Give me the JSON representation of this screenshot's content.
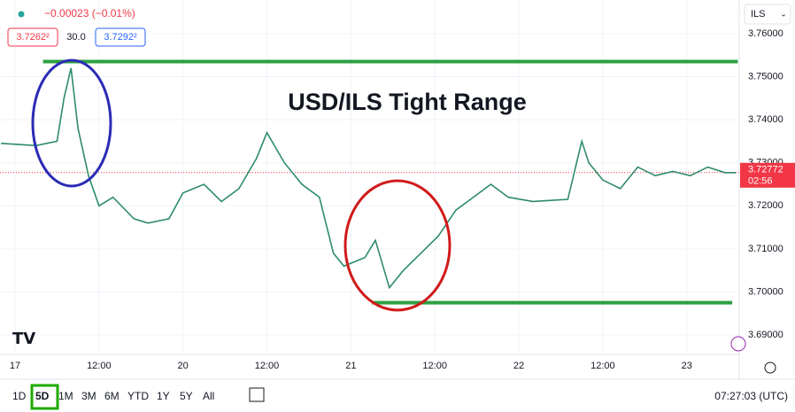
{
  "header": {
    "change": "−0.00023 (−0.01%)",
    "bid": "3.7262²",
    "spread": "30.0",
    "ask": "3.7292²",
    "currency": "ILS"
  },
  "toolbar": {
    "ranges": [
      "1D",
      "5D",
      "1M",
      "3M",
      "6M",
      "YTD",
      "1Y",
      "5Y",
      "All"
    ],
    "active": "5D",
    "clock": "07:27:03 (UTC)"
  },
  "chart_data": {
    "type": "line",
    "title": "USD/ILS Tight Range",
    "x": [
      -2,
      3,
      6,
      7,
      8,
      9,
      10.5,
      12,
      14,
      17,
      19,
      22,
      24,
      27,
      29.5,
      32,
      34.5,
      36,
      38.5,
      41,
      43.5,
      45.5,
      47,
      50,
      51.5,
      53.5,
      55.5,
      58,
      60.5,
      63,
      65.5,
      68,
      70.5,
      74,
      79,
      81,
      82,
      84,
      86.5,
      89,
      91.5,
      94,
      96.5,
      99,
      101.5,
      103
    ],
    "series": [
      {
        "name": "USD/ILS",
        "color": "#2e8b6a",
        "values": [
          3.7345,
          3.734,
          3.735,
          3.745,
          3.752,
          3.738,
          3.727,
          3.72,
          3.722,
          3.717,
          3.716,
          3.717,
          3.723,
          3.725,
          3.721,
          3.724,
          3.731,
          3.737,
          3.73,
          3.725,
          3.722,
          3.709,
          3.706,
          3.708,
          3.712,
          3.701,
          3.705,
          3.709,
          3.713,
          3.719,
          3.722,
          3.725,
          3.722,
          3.721,
          3.7215,
          3.735,
          3.73,
          3.726,
          3.724,
          3.729,
          3.727,
          3.728,
          3.727,
          3.729,
          3.7277,
          3.72772
        ]
      }
    ],
    "levels": [
      {
        "value": 3.7535,
        "from": 4,
        "to": 103.3,
        "color": "#2ea043"
      },
      {
        "value": 3.6975,
        "from": 51,
        "to": 102.5,
        "color": "#2ea043"
      }
    ],
    "last_price": {
      "value": 3.72772,
      "countdown": "02:56",
      "color": "#f23645"
    },
    "xlim": [
      -2.15,
      103.5
    ],
    "ylim": [
      3.6855,
      3.7678
    ],
    "xticks": [
      {
        "value": 0,
        "label": "17"
      },
      {
        "value": 12,
        "label": "12:00"
      },
      {
        "value": 24,
        "label": "20"
      },
      {
        "value": 36,
        "label": "12:00"
      },
      {
        "value": 48,
        "label": "21"
      },
      {
        "value": 60,
        "label": "12:00"
      },
      {
        "value": 72,
        "label": "22"
      },
      {
        "value": 84,
        "label": "12:00"
      },
      {
        "value": 96,
        "label": "23"
      }
    ],
    "yticks": [
      {
        "value": 3.69,
        "label": "3.69000"
      },
      {
        "value": 3.7,
        "label": "3.70000"
      },
      {
        "value": 3.71,
        "label": "3.71000"
      },
      {
        "value": 3.72,
        "label": "3.72000"
      },
      {
        "value": 3.73,
        "label": "3.73000"
      },
      {
        "value": 3.74,
        "label": "3.74000"
      },
      {
        "value": 3.75,
        "label": "3.75000"
      },
      {
        "value": 3.76,
        "label": "3.76000"
      }
    ],
    "grid": true
  }
}
